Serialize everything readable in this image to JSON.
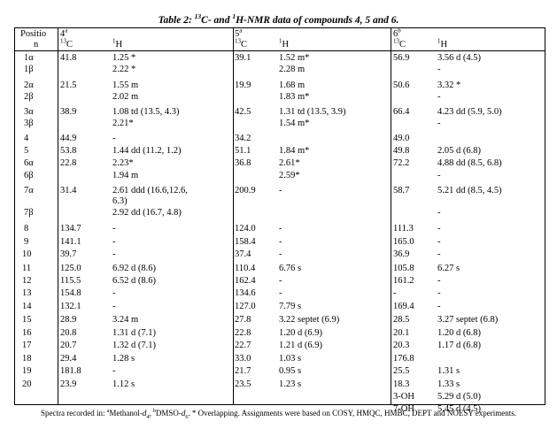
{
  "title": {
    "prefix": "Table 2: ",
    "c_sup": "13",
    "c_text": "C- and ",
    "h_sup": "1",
    "h_text": "H-NMR data of compounds 4, 5 and 6."
  },
  "header": {
    "position_line1": "Positio",
    "position_line2": "n",
    "compounds": [
      {
        "name": "4",
        "sup": "a"
      },
      {
        "name": "5",
        "sup": "a"
      },
      {
        "name": "6",
        "sup": "b"
      }
    ],
    "c_label_sup": "13",
    "c_label": "C",
    "h_label_sup": "1",
    "h_label": "H"
  },
  "rows": [
    {
      "pos": "1α",
      "c4": "41.8",
      "h4": [
        "1.25 *"
      ],
      "c5": "39.1",
      "h5": [
        "1.52 m*"
      ],
      "c6": "56.9",
      "h6": [
        "3.56 d (4.5)"
      ]
    },
    {
      "pos": "1β",
      "c4": "",
      "h4": [
        "2.22 *"
      ],
      "c5": "",
      "h5": [
        "2.28 m"
      ],
      "c6": "",
      "h6": [
        "-"
      ]
    },
    {
      "pos": "2α",
      "c4": "21.5",
      "h4": [
        "1.55 m"
      ],
      "c5": "19.9",
      "h5": [
        "1.68 m"
      ],
      "c6": "50.6",
      "h6": [
        "3.32 *"
      ]
    },
    {
      "pos": "2β",
      "c4": "",
      "h4": [
        "2.02 m"
      ],
      "c5": "",
      "h5": [
        "1.83 m*"
      ],
      "c6": "",
      "h6": [
        "-"
      ]
    },
    {
      "pos": "3α",
      "c4": "38.9",
      "h4": [
        "1.08 td (13.5, 4.3)"
      ],
      "c5": "42.5",
      "h5": [
        "1.31 td (13.5, 3.9)"
      ],
      "c6": "66.4",
      "h6": [
        "4.23 dd (5.9, 5.0)"
      ]
    },
    {
      "pos": "3β",
      "c4": "",
      "h4": [
        "2.21*"
      ],
      "c5": "",
      "h5": [
        "1.54 m*"
      ],
      "c6": "",
      "h6": [
        "-"
      ]
    },
    {
      "pos": "4",
      "c4": "44.9",
      "h4": [
        "-"
      ],
      "c5": "34.2",
      "h5": [
        ""
      ],
      "c6": "49.0",
      "h6": [
        ""
      ]
    },
    {
      "pos": "5",
      "c4": "53.8",
      "h4": [
        "1.44 dd (11.2, 1.2)"
      ],
      "c5": "51.1",
      "h5": [
        "1.84 m*"
      ],
      "c6": "49.8",
      "h6": [
        "2.05 d (6.8)"
      ]
    },
    {
      "pos": "6α",
      "c4": "22.8",
      "h4": [
        "2.23*"
      ],
      "c5": "36.8",
      "h5": [
        "2.61*"
      ],
      "c6": "72.2",
      "h6": [
        "4.88 dd (8.5, 6.8)"
      ]
    },
    {
      "pos": "6β",
      "c4": "",
      "h4": [
        "1.94 m"
      ],
      "c5": "",
      "h5": [
        "2.59*"
      ],
      "c6": "",
      "h6": [
        "-"
      ]
    },
    {
      "pos": "7α",
      "c4": "31.4",
      "h4": [
        "2.61 ddd (16.6,12.6,",
        "6.3)"
      ],
      "c5": "200.9",
      "h5": [
        "-"
      ],
      "c6": "58.7",
      "h6": [
        "5.21 dd (8.5, 4.5)"
      ]
    },
    {
      "pos": "7β",
      "c4": "",
      "h4": [
        "2.92 dd (16.7, 4.8)"
      ],
      "c5": "",
      "h5": [
        ""
      ],
      "c6": "",
      "h6": [
        "-"
      ]
    },
    {
      "pos": "8",
      "c4": "134.7",
      "h4": [
        "-"
      ],
      "c5": "124.0",
      "h5": [
        "-"
      ],
      "c6": "111.3",
      "h6": [
        "-"
      ]
    },
    {
      "pos": "9",
      "c4": "141.1",
      "h4": [
        "-"
      ],
      "c5": "158.4",
      "h5": [
        "-"
      ],
      "c6": "165.0",
      "h6": [
        "-"
      ]
    },
    {
      "pos": "10",
      "c4": "39.7",
      "h4": [
        "-"
      ],
      "c5": "37.4",
      "h5": [
        "-"
      ],
      "c6": "36.9",
      "h6": [
        "-"
      ]
    },
    {
      "pos": "11",
      "c4": "125.0",
      "h4": [
        "6.92 d (8.6)"
      ],
      "c5": "110.4",
      "h5": [
        "6.76 s"
      ],
      "c6": "105.8",
      "h6": [
        "6.27 s"
      ]
    },
    {
      "pos": "12",
      "c4": "115.5",
      "h4": [
        "6.52 d (8.6)"
      ],
      "c5": "162.4",
      "h5": [
        "-"
      ],
      "c6": "161.2",
      "h6": [
        "-"
      ]
    },
    {
      "pos": "13",
      "c4": "154.8",
      "h4": [
        "-"
      ],
      "c5": "134.6",
      "h5": [
        "-"
      ],
      "c6": "-",
      "h6": [
        "-"
      ]
    },
    {
      "pos": "14",
      "c4": "132.1",
      "h4": [
        "-"
      ],
      "c5": "127.0",
      "h5": [
        "7.79 s"
      ],
      "c6": "169.4",
      "h6": [
        "-"
      ]
    },
    {
      "pos": "15",
      "c4": "28.9",
      "h4": [
        "3.24 m"
      ],
      "c5": "27.8",
      "h5": [
        "3.22 septet (6.9)"
      ],
      "c6": "28.5",
      "h6": [
        "3.27 septet (6.8)"
      ]
    },
    {
      "pos": "16",
      "c4": "20.8",
      "h4": [
        "1.31 d (7.1)"
      ],
      "c5": "22.8",
      "h5": [
        "1.20 d (6.9)"
      ],
      "c6": "20.1",
      "h6": [
        "1.20 d (6.8)"
      ]
    },
    {
      "pos": "17",
      "c4": "20.7",
      "h4": [
        "1.32 d (7.1)"
      ],
      "c5": "22.7",
      "h5": [
        "1.21 d (6.9)"
      ],
      "c6": "20.3",
      "h6": [
        "1.17 d (6.8)"
      ]
    },
    {
      "pos": "18",
      "c4": "29.4",
      "h4": [
        "1.28 s"
      ],
      "c5": "33.0",
      "h5": [
        "1.03 s"
      ],
      "c6": "176.8",
      "h6": [
        ""
      ]
    },
    {
      "pos": "19",
      "c4": "181.8",
      "h4": [
        "-"
      ],
      "c5": "21.7",
      "h5": [
        "0.95 s"
      ],
      "c6": "25.5",
      "h6": [
        "1.31 s"
      ]
    },
    {
      "pos": "20",
      "c4": "23.9",
      "h4": [
        "1.12 s"
      ],
      "c5": "23.5",
      "h5": [
        "1.23 s"
      ],
      "c6": "18.3",
      "h6": [
        "1.33 s"
      ]
    }
  ],
  "extra_rows": [
    {
      "label": "3-OH",
      "h6": "5.29 d (5.0)"
    },
    {
      "label": "7-OH",
      "h6": "5.45 d (4.5)"
    }
  ],
  "footer": {
    "t1": "Spectra recorded in: ",
    "a_sup": "a",
    "t2": "Methanol-",
    "d4": "d",
    "d4_sub": "4",
    "t3": ", ",
    "b_sup": "b",
    "t4": "DMSO-",
    "d6": "d",
    "d6_sub": "6",
    "t5": ". * Overlapping. Assignments were based on COSY, HMQC, HMBC, DEPT and NOESY experiments."
  }
}
